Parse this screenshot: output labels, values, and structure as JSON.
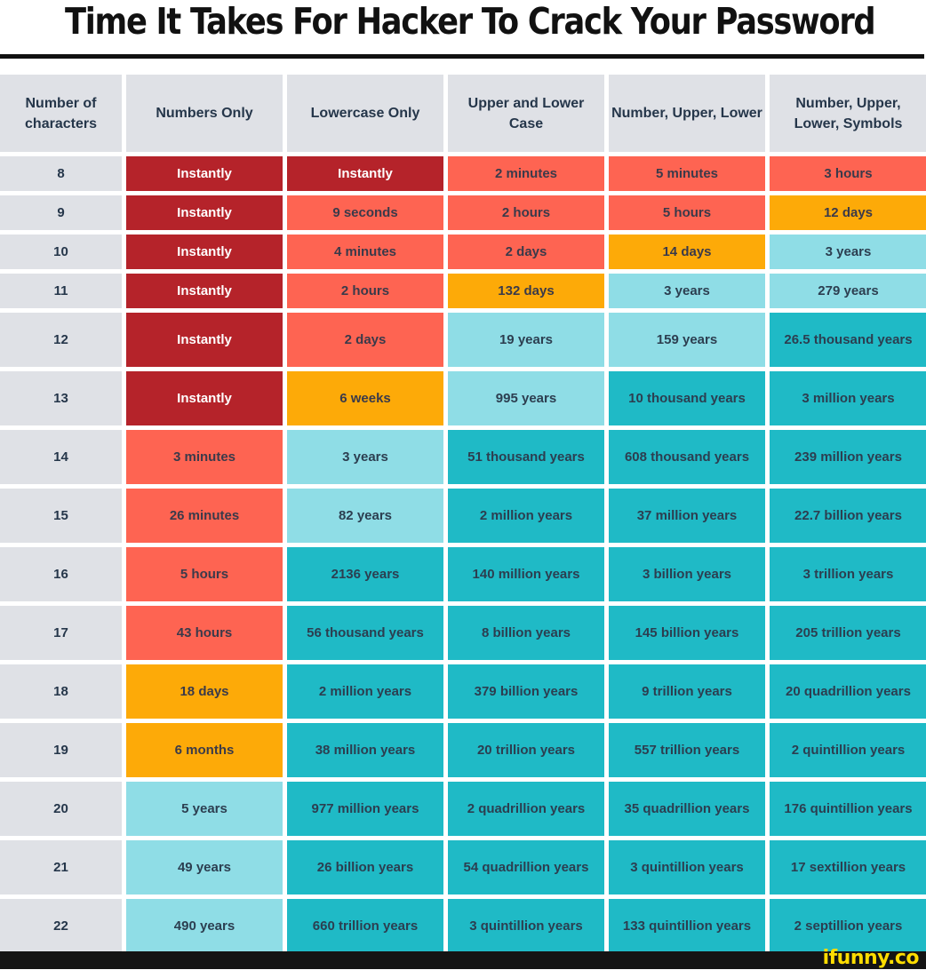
{
  "title": "Time It Takes For Hacker To Crack Your Password",
  "headers": [
    "Number of characters",
    "Numbers Only",
    "Lowercase Only",
    "Upper and Lower Case",
    "Number, Upper, Lower",
    "Number, Upper, Lower, Symbols"
  ],
  "colors": {
    "darkred": "#b5232a",
    "red": "#fe6452",
    "orange": "#fdaa08",
    "light": "#8fdde6",
    "teal": "#1fbac6",
    "header": "#dfe1e6"
  },
  "rows": [
    {
      "n": "8",
      "size": "small",
      "cells": [
        {
          "t": "Instantly",
          "c": "darkred"
        },
        {
          "t": "Instantly",
          "c": "darkred"
        },
        {
          "t": "2 minutes",
          "c": "red"
        },
        {
          "t": "5 minutes",
          "c": "red"
        },
        {
          "t": "3 hours",
          "c": "red"
        }
      ]
    },
    {
      "n": "9",
      "size": "small",
      "cells": [
        {
          "t": "Instantly",
          "c": "darkred"
        },
        {
          "t": "9 seconds",
          "c": "red"
        },
        {
          "t": "2 hours",
          "c": "red"
        },
        {
          "t": "5 hours",
          "c": "red"
        },
        {
          "t": "12 days",
          "c": "orange"
        }
      ]
    },
    {
      "n": "10",
      "size": "small",
      "cells": [
        {
          "t": "Instantly",
          "c": "darkred"
        },
        {
          "t": "4 minutes",
          "c": "red"
        },
        {
          "t": "2 days",
          "c": "red"
        },
        {
          "t": "14 days",
          "c": "orange"
        },
        {
          "t": "3 years",
          "c": "light"
        }
      ]
    },
    {
      "n": "11",
      "size": "small",
      "cells": [
        {
          "t": "Instantly",
          "c": "darkred"
        },
        {
          "t": "2 hours",
          "c": "red"
        },
        {
          "t": "132 days",
          "c": "orange"
        },
        {
          "t": "3 years",
          "c": "light"
        },
        {
          "t": "279 years",
          "c": "light"
        }
      ]
    },
    {
      "n": "12",
      "size": "large",
      "cells": [
        {
          "t": "Instantly",
          "c": "darkred"
        },
        {
          "t": "2 days",
          "c": "red"
        },
        {
          "t": "19 years",
          "c": "light"
        },
        {
          "t": "159 years",
          "c": "light"
        },
        {
          "t": "26.5 thousand years",
          "c": "teal"
        }
      ]
    },
    {
      "n": "13",
      "size": "large",
      "cells": [
        {
          "t": "Instantly",
          "c": "darkred"
        },
        {
          "t": "6 weeks",
          "c": "orange"
        },
        {
          "t": "995 years",
          "c": "light"
        },
        {
          "t": "10 thousand years",
          "c": "teal"
        },
        {
          "t": "3 million years",
          "c": "teal"
        }
      ]
    },
    {
      "n": "14",
      "size": "large",
      "cells": [
        {
          "t": "3 minutes",
          "c": "red"
        },
        {
          "t": "3 years",
          "c": "light"
        },
        {
          "t": "51 thousand years",
          "c": "teal"
        },
        {
          "t": "608 thousand years",
          "c": "teal"
        },
        {
          "t": "239 million years",
          "c": "teal"
        }
      ]
    },
    {
      "n": "15",
      "size": "large",
      "cells": [
        {
          "t": "26 minutes",
          "c": "red"
        },
        {
          "t": "82 years",
          "c": "light"
        },
        {
          "t": "2 million years",
          "c": "teal"
        },
        {
          "t": "37 million years",
          "c": "teal"
        },
        {
          "t": "22.7 billion years",
          "c": "teal"
        }
      ]
    },
    {
      "n": "16",
      "size": "large",
      "cells": [
        {
          "t": "5 hours",
          "c": "red"
        },
        {
          "t": "2136 years",
          "c": "teal"
        },
        {
          "t": "140 million years",
          "c": "teal"
        },
        {
          "t": "3 billion years",
          "c": "teal"
        },
        {
          "t": "3 trillion years",
          "c": "teal"
        }
      ]
    },
    {
      "n": "17",
      "size": "large",
      "cells": [
        {
          "t": "43 hours",
          "c": "red"
        },
        {
          "t": "56 thousand years",
          "c": "teal"
        },
        {
          "t": "8 billion years",
          "c": "teal"
        },
        {
          "t": "145  billion years",
          "c": "teal"
        },
        {
          "t": "205 trillion years",
          "c": "teal"
        }
      ]
    },
    {
      "n": "18",
      "size": "large",
      "cells": [
        {
          "t": "18 days",
          "c": "orange"
        },
        {
          "t": "2 million years",
          "c": "teal"
        },
        {
          "t": "379 billion years",
          "c": "teal"
        },
        {
          "t": "9 trillion years",
          "c": "teal"
        },
        {
          "t": "20 quadrillion years",
          "c": "teal"
        }
      ]
    },
    {
      "n": "19",
      "size": "large",
      "cells": [
        {
          "t": "6 months",
          "c": "orange"
        },
        {
          "t": "38 million years",
          "c": "teal"
        },
        {
          "t": "20 trillion years",
          "c": "teal"
        },
        {
          "t": "557 trillion years",
          "c": "teal"
        },
        {
          "t": "2 quintillion years",
          "c": "teal"
        }
      ]
    },
    {
      "n": "20",
      "size": "large",
      "cells": [
        {
          "t": "5 years",
          "c": "light"
        },
        {
          "t": "977 million years",
          "c": "teal"
        },
        {
          "t": "2 quadrillion years",
          "c": "teal"
        },
        {
          "t": "35 quadrillion years",
          "c": "teal"
        },
        {
          "t": "176 quintillion years",
          "c": "teal"
        }
      ]
    },
    {
      "n": "21",
      "size": "large",
      "cells": [
        {
          "t": "49 years",
          "c": "light"
        },
        {
          "t": "26 billion years",
          "c": "teal"
        },
        {
          "t": "54 quadrillion years",
          "c": "teal"
        },
        {
          "t": "3 quintillion years",
          "c": "teal"
        },
        {
          "t": "17 sextillion years",
          "c": "teal"
        }
      ]
    },
    {
      "n": "22",
      "size": "large",
      "cells": [
        {
          "t": "490 years",
          "c": "light"
        },
        {
          "t": "660 trillion years",
          "c": "teal"
        },
        {
          "t": "3 quintillion years",
          "c": "teal"
        },
        {
          "t": "133 quintillion years",
          "c": "teal"
        },
        {
          "t": "2 septillion years",
          "c": "teal"
        }
      ]
    }
  ],
  "watermark": "ifunny.co"
}
